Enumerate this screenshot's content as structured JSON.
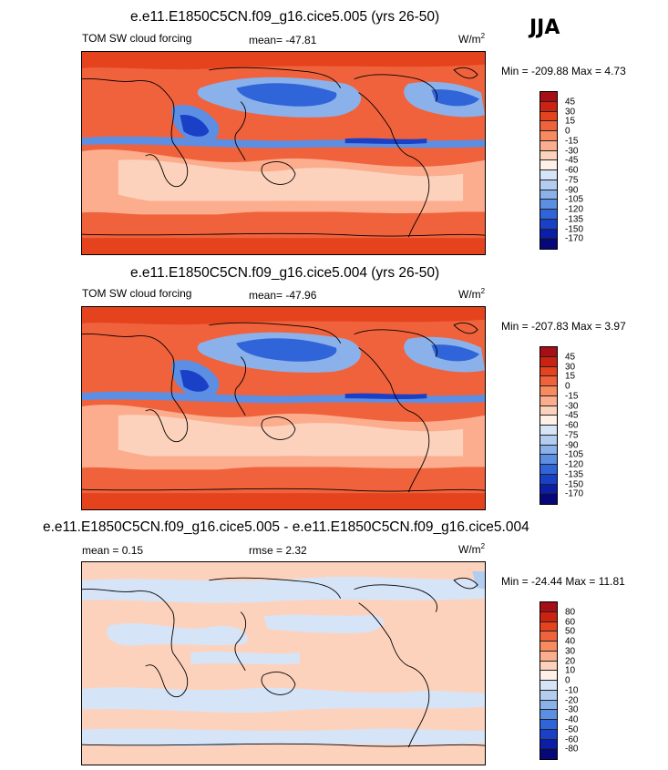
{
  "season": "JJA",
  "panels": [
    {
      "title": "e.e11.E1850C5CN.f09_g16.cice5.005 (yrs 26-50)",
      "left_label": "TOM SW cloud forcing",
      "center_label": "mean= -47.81",
      "units": "W/m",
      "units_sup": "2",
      "minmax": "Min = -209.88 Max =   4.73",
      "colorbar": {
        "labels": [
          "45",
          "30",
          "15",
          "0",
          "-15",
          "-30",
          "-45",
          "-60",
          "-75",
          "-90",
          "-105",
          "-120",
          "-135",
          "-150",
          "-170"
        ],
        "colors": [
          "#a50f15",
          "#cb2212",
          "#e5431e",
          "#f0623c",
          "#f78a5e",
          "#fbad8e",
          "#fdd2bd",
          "#fff0e8",
          "#d6e4f7",
          "#b2cdf0",
          "#8bb1ea",
          "#5c8ee3",
          "#3065d9",
          "#1940c6",
          "#0b1ea8",
          "#06087a"
        ]
      }
    },
    {
      "title": "e.e11.E1850C5CN.f09_g16.cice5.004 (yrs 26-50)",
      "left_label": "TOM SW cloud forcing",
      "center_label": "mean= -47.96",
      "units": "W/m",
      "units_sup": "2",
      "minmax": "Min = -207.83 Max =   3.97",
      "colorbar": {
        "labels": [
          "45",
          "30",
          "15",
          "0",
          "-15",
          "-30",
          "-45",
          "-60",
          "-75",
          "-90",
          "-105",
          "-120",
          "-135",
          "-150",
          "-170"
        ],
        "colors": [
          "#a50f15",
          "#cb2212",
          "#e5431e",
          "#f0623c",
          "#f78a5e",
          "#fbad8e",
          "#fdd2bd",
          "#fff0e8",
          "#d6e4f7",
          "#b2cdf0",
          "#8bb1ea",
          "#5c8ee3",
          "#3065d9",
          "#1940c6",
          "#0b1ea8",
          "#06087a"
        ]
      }
    },
    {
      "title": "e.e11.E1850C5CN.f09_g16.cice5.005 - e.e11.E1850C5CN.f09_g16.cice5.004",
      "left_label": "mean =   0.15",
      "center_label": "rmse =   2.32",
      "units": "W/m",
      "units_sup": "2",
      "minmax": "Min = -24.44 Max =  11.81",
      "colorbar": {
        "labels": [
          "80",
          "60",
          "50",
          "40",
          "30",
          "20",
          "10",
          "0",
          "-10",
          "-20",
          "-30",
          "-40",
          "-50",
          "-60",
          "-80"
        ],
        "colors": [
          "#a50f15",
          "#cb2212",
          "#e5431e",
          "#f0623c",
          "#f78a5e",
          "#fbad8e",
          "#fdd2bd",
          "#fff0e8",
          "#d6e4f7",
          "#b2cdf0",
          "#8bb1ea",
          "#5c8ee3",
          "#3065d9",
          "#1940c6",
          "#0b1ea8",
          "#06087a"
        ]
      }
    }
  ]
}
